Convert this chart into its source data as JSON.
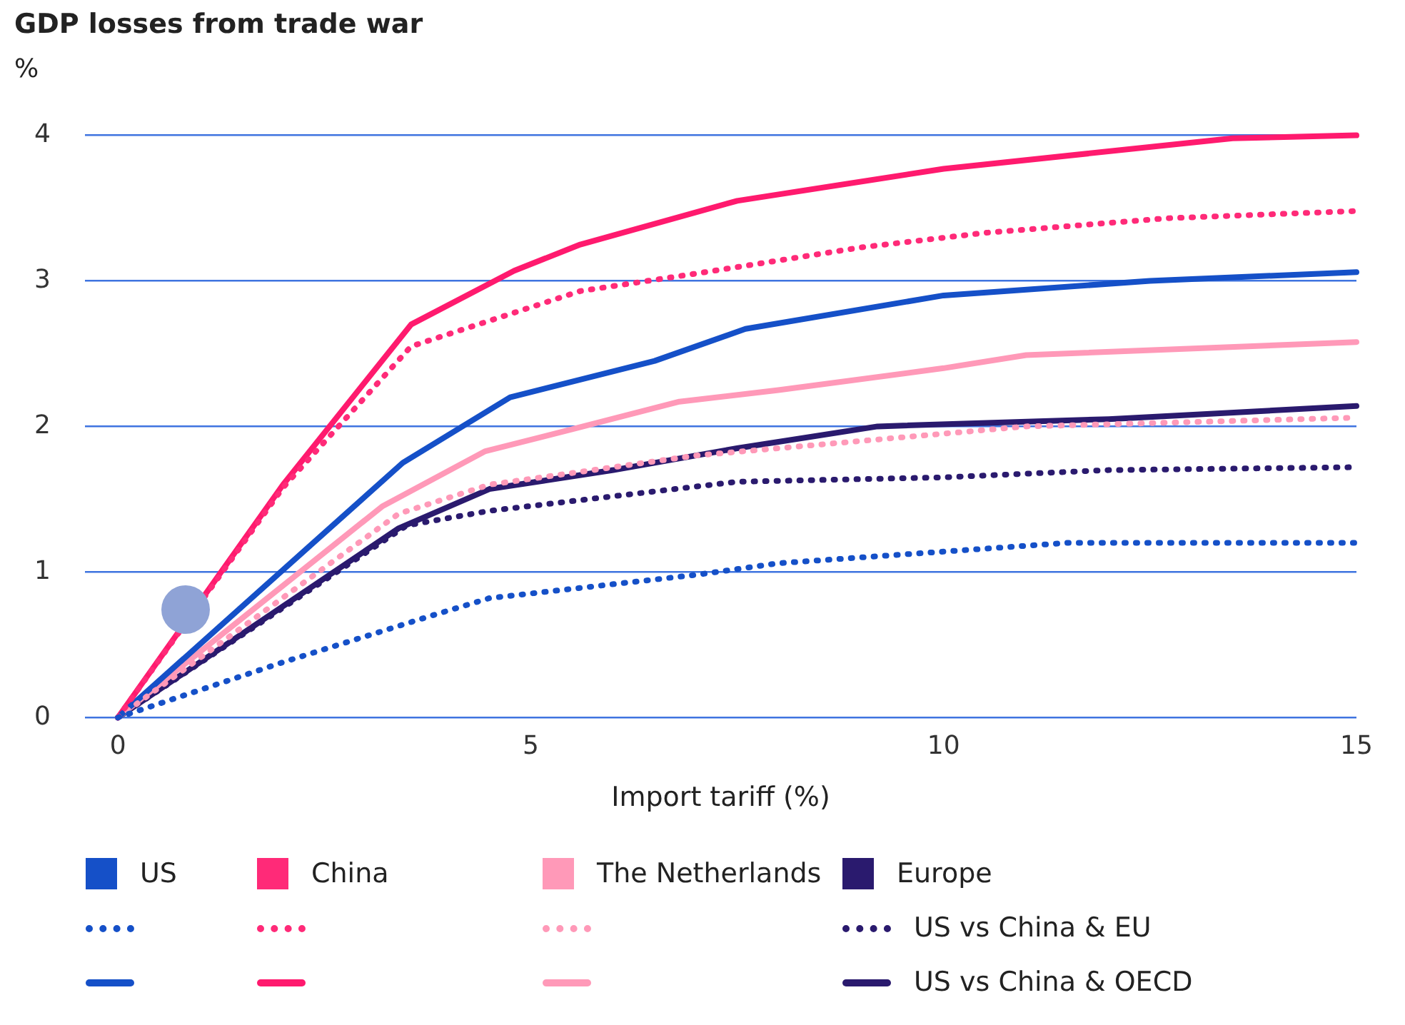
{
  "chart_data": {
    "type": "line",
    "title": "GDP losses from trade war",
    "ylabel": "%",
    "xlabel": "Import tariff (%)",
    "xlim": [
      -0.4,
      15
    ],
    "xticks": [
      0,
      5,
      10,
      15
    ],
    "ylim": [
      0,
      4
    ],
    "yticks": [
      0,
      1,
      2,
      3,
      4
    ],
    "grid": "y",
    "legend": "bottom",
    "marker": "none",
    "annotations": [
      "US",
      "China",
      "The Netherlands",
      "Europe"
    ],
    "series": [
      {
        "color": "#1550c8",
        "line_style": "dotted",
        "x": [
          0,
          2,
          3.8,
          4.5,
          7,
          8,
          10,
          11.5,
          15
        ],
        "values": [
          0,
          0.38,
          0.7,
          0.82,
          0.98,
          1.06,
          1.14,
          1.2,
          1.2
        ]
      },
      {
        "color": "#ff2a78",
        "line_style": "dotted",
        "x": [
          0,
          2,
          3.55,
          5.6,
          7,
          9,
          10.5,
          12.7,
          15
        ],
        "values": [
          0,
          1.58,
          2.55,
          2.93,
          3.05,
          3.23,
          3.33,
          3.43,
          3.48
        ]
      },
      {
        "color": "#ff99b8",
        "line_style": "dotted",
        "x": [
          0,
          3.4,
          4.5,
          7,
          9,
          11,
          13,
          15
        ],
        "values": [
          0,
          1.4,
          1.6,
          1.8,
          1.9,
          2.0,
          2.03,
          2.06
        ]
      },
      {
        "name": "US vs China & EU",
        "color": "#2a1a6e",
        "line_style": "dotted",
        "x": [
          0,
          3.5,
          4.5,
          6,
          7.5,
          10,
          12,
          15
        ],
        "values": [
          0,
          1.32,
          1.42,
          1.52,
          1.62,
          1.65,
          1.7,
          1.72
        ]
      },
      {
        "color": "#1550c8",
        "line_style": "solid",
        "x": [
          0,
          3.45,
          4.75,
          6.5,
          7.6,
          10,
          12.5,
          15
        ],
        "values": [
          0,
          1.75,
          2.2,
          2.45,
          2.67,
          2.9,
          3.0,
          3.06
        ]
      },
      {
        "color": "#ff1a6e",
        "line_style": "solid",
        "x": [
          0,
          2,
          3.55,
          4.8,
          5.6,
          7.5,
          10,
          13.5,
          15
        ],
        "values": [
          0,
          1.6,
          2.7,
          3.07,
          3.25,
          3.55,
          3.77,
          3.98,
          4.0
        ]
      },
      {
        "color": "#ff99b8",
        "line_style": "solid",
        "x": [
          0,
          3.2,
          4.45,
          5.5,
          6.8,
          8,
          10,
          11,
          15
        ],
        "values": [
          0,
          1.45,
          1.83,
          1.98,
          2.17,
          2.25,
          2.4,
          2.49,
          2.58
        ]
      },
      {
        "name": "US vs China & OECD",
        "color": "#2a1a6e",
        "line_style": "solid",
        "x": [
          0,
          3.4,
          4.5,
          6,
          7.5,
          9.2,
          12,
          15
        ],
        "values": [
          0,
          1.3,
          1.57,
          1.7,
          1.85,
          2.0,
          2.05,
          2.14
        ]
      }
    ]
  }
}
